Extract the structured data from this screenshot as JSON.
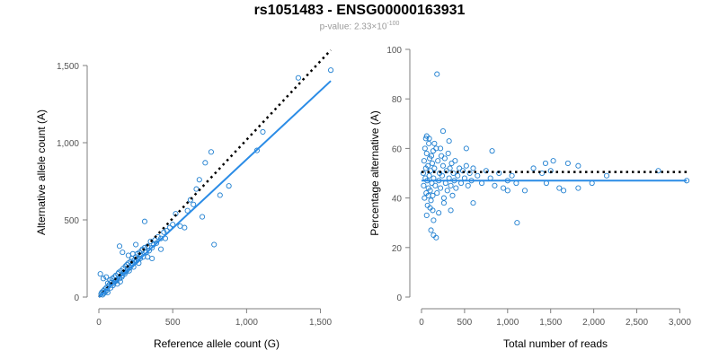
{
  "title": "rs1051483 - ENSG00000163931",
  "subtitle": {
    "prefix": "p-value: ",
    "mantissa": "2.33×10",
    "exponent": "-100"
  },
  "colors": {
    "points": "#1f7fd0",
    "fit": "#2b8ce6",
    "axis": "#7f7f7f",
    "reference": "#000000"
  },
  "chart_data": [
    {
      "type": "scatter",
      "xlabel": "Reference allele count (G)",
      "ylabel": "Alternative allele count (A)",
      "xlim": [
        0,
        1600
      ],
      "ylim": [
        0,
        1500
      ],
      "xticks": [
        0,
        500,
        1000,
        1500
      ],
      "xtick_labels": [
        "0",
        "500",
        "1,000",
        "1,500"
      ],
      "yticks": [
        0,
        500,
        1000,
        1500
      ],
      "ytick_labels": [
        "0",
        "500",
        "1,000",
        "1,500"
      ],
      "reference_line": {
        "x": [
          0,
          1570
        ],
        "y": [
          0,
          1600
        ],
        "style": "dotted"
      },
      "fit_line": {
        "x": [
          0,
          1570
        ],
        "y": [
          0,
          1400
        ]
      },
      "points": [
        [
          15,
          20
        ],
        [
          20,
          30
        ],
        [
          25,
          15
        ],
        [
          30,
          40
        ],
        [
          35,
          25
        ],
        [
          40,
          50
        ],
        [
          45,
          35
        ],
        [
          50,
          60
        ],
        [
          55,
          45
        ],
        [
          60,
          30
        ],
        [
          10,
          150
        ],
        [
          30,
          120
        ],
        [
          50,
          130
        ],
        [
          60,
          90
        ],
        [
          65,
          70
        ],
        [
          70,
          80
        ],
        [
          75,
          110
        ],
        [
          80,
          60
        ],
        [
          85,
          95
        ],
        [
          90,
          120
        ],
        [
          95,
          75
        ],
        [
          100,
          90
        ],
        [
          105,
          130
        ],
        [
          110,
          100
        ],
        [
          115,
          140
        ],
        [
          120,
          110
        ],
        [
          125,
          85
        ],
        [
          130,
          150
        ],
        [
          135,
          160
        ],
        [
          140,
          120
        ],
        [
          145,
          100
        ],
        [
          150,
          170
        ],
        [
          155,
          130
        ],
        [
          160,
          140
        ],
        [
          165,
          185
        ],
        [
          170,
          160
        ],
        [
          175,
          150
        ],
        [
          180,
          200
        ],
        [
          185,
          165
        ],
        [
          190,
          210
        ],
        [
          195,
          180
        ],
        [
          200,
          220
        ],
        [
          205,
          170
        ],
        [
          210,
          190
        ],
        [
          215,
          230
        ],
        [
          220,
          205
        ],
        [
          225,
          250
        ],
        [
          230,
          215
        ],
        [
          235,
          195
        ],
        [
          240,
          240
        ],
        [
          245,
          225
        ],
        [
          250,
          260
        ],
        [
          255,
          235
        ],
        [
          260,
          280
        ],
        [
          265,
          245
        ],
        [
          270,
          220
        ],
        [
          275,
          290
        ],
        [
          280,
          250
        ],
        [
          285,
          270
        ],
        [
          290,
          300
        ],
        [
          295,
          310
        ],
        [
          300,
          260
        ],
        [
          310,
          320
        ],
        [
          320,
          290
        ],
        [
          330,
          330
        ],
        [
          340,
          300
        ],
        [
          350,
          360
        ],
        [
          360,
          320
        ],
        [
          370,
          340
        ],
        [
          380,
          370
        ],
        [
          390,
          350
        ],
        [
          400,
          390
        ],
        [
          420,
          380
        ],
        [
          440,
          420
        ],
        [
          460,
          430
        ],
        [
          480,
          450
        ],
        [
          500,
          470
        ],
        [
          520,
          540
        ],
        [
          550,
          460
        ],
        [
          580,
          450
        ],
        [
          600,
          560
        ],
        [
          620,
          630
        ],
        [
          640,
          600
        ],
        [
          660,
          700
        ],
        [
          680,
          760
        ],
        [
          700,
          520
        ],
        [
          720,
          870
        ],
        [
          760,
          940
        ],
        [
          780,
          340
        ],
        [
          820,
          660
        ],
        [
          880,
          720
        ],
        [
          140,
          330
        ],
        [
          160,
          290
        ],
        [
          200,
          270
        ],
        [
          230,
          280
        ],
        [
          250,
          340
        ],
        [
          310,
          490
        ],
        [
          330,
          260
        ],
        [
          360,
          250
        ],
        [
          1070,
          950
        ],
        [
          1110,
          1070
        ],
        [
          1350,
          1420
        ],
        [
          1570,
          1470
        ],
        [
          420,
          310
        ],
        [
          450,
          380
        ]
      ]
    },
    {
      "type": "scatter",
      "xlabel": "Total number of reads",
      "ylabel": "Percentage alternative (A)",
      "xlim": [
        0,
        3100
      ],
      "ylim": [
        0,
        100
      ],
      "xticks": [
        0,
        500,
        1000,
        1500,
        2000,
        2500,
        3000
      ],
      "xtick_labels": [
        "0",
        "500",
        "1,000",
        "1,500",
        "2,000",
        "2,500",
        "3,000"
      ],
      "yticks": [
        0,
        20,
        40,
        60,
        80,
        100
      ],
      "ytick_labels": [
        "0",
        "20",
        "40",
        "60",
        "80",
        "100"
      ],
      "reference_line": {
        "x": [
          0,
          3080
        ],
        "y": [
          50.5,
          50.5
        ],
        "style": "dotted"
      },
      "fit_line": {
        "x": [
          0,
          3080
        ],
        "y": [
          47,
          47
        ]
      },
      "points": [
        [
          20,
          50
        ],
        [
          25,
          45
        ],
        [
          30,
          55
        ],
        [
          35,
          40
        ],
        [
          40,
          60
        ],
        [
          45,
          48
        ],
        [
          50,
          52
        ],
        [
          55,
          42
        ],
        [
          60,
          58
        ],
        [
          65,
          47
        ],
        [
          70,
          37
        ],
        [
          75,
          53
        ],
        [
          80,
          44
        ],
        [
          85,
          62
        ],
        [
          90,
          49
        ],
        [
          95,
          56
        ],
        [
          100,
          43
        ],
        [
          105,
          51
        ],
        [
          110,
          39
        ],
        [
          115,
          57
        ],
        [
          120,
          46
        ],
        [
          125,
          54
        ],
        [
          130,
          41
        ],
        [
          135,
          59
        ],
        [
          140,
          48
        ],
        [
          150,
          52
        ],
        [
          160,
          45
        ],
        [
          170,
          60
        ],
        [
          180,
          42
        ],
        [
          190,
          55
        ],
        [
          200,
          47
        ],
        [
          210,
          50
        ],
        [
          220,
          44
        ],
        [
          230,
          57
        ],
        [
          240,
          49
        ],
        [
          250,
          53
        ],
        [
          260,
          40
        ],
        [
          270,
          56
        ],
        [
          280,
          46
        ],
        [
          290,
          51
        ],
        [
          300,
          43
        ],
        [
          310,
          58
        ],
        [
          320,
          48
        ],
        [
          330,
          52
        ],
        [
          340,
          45
        ],
        [
          350,
          54
        ],
        [
          360,
          41
        ],
        [
          370,
          50
        ],
        [
          380,
          47
        ],
        [
          390,
          55
        ],
        [
          400,
          44
        ],
        [
          420,
          49
        ],
        [
          440,
          52
        ],
        [
          460,
          46
        ],
        [
          480,
          51
        ],
        [
          500,
          48
        ],
        [
          520,
          53
        ],
        [
          540,
          45
        ],
        [
          560,
          50
        ],
        [
          580,
          47
        ],
        [
          600,
          52
        ],
        [
          650,
          49
        ],
        [
          700,
          46
        ],
        [
          750,
          51
        ],
        [
          800,
          48
        ],
        [
          850,
          45
        ],
        [
          900,
          50
        ],
        [
          950,
          44
        ],
        [
          1000,
          47
        ],
        [
          1050,
          49
        ],
        [
          1100,
          46
        ],
        [
          1200,
          43
        ],
        [
          1300,
          52
        ],
        [
          1400,
          50
        ],
        [
          1450,
          46
        ],
        [
          1500,
          51
        ],
        [
          1600,
          44
        ],
        [
          1650,
          43
        ],
        [
          1700,
          54
        ],
        [
          1820,
          44
        ],
        [
          1980,
          46
        ],
        [
          2150,
          49
        ],
        [
          2750,
          51
        ],
        [
          3080,
          47
        ],
        [
          180,
          90
        ],
        [
          170,
          24
        ],
        [
          110,
          27
        ],
        [
          140,
          25
        ],
        [
          1110,
          30
        ],
        [
          250,
          67
        ],
        [
          60,
          65
        ],
        [
          90,
          64
        ],
        [
          320,
          63
        ],
        [
          520,
          60
        ],
        [
          820,
          59
        ],
        [
          1440,
          54
        ],
        [
          1530,
          55
        ],
        [
          1820,
          53
        ],
        [
          100,
          36
        ],
        [
          60,
          33
        ],
        [
          140,
          31
        ],
        [
          260,
          38
        ],
        [
          340,
          35
        ],
        [
          600,
          38
        ],
        [
          1000,
          43
        ],
        [
          50,
          64
        ],
        [
          150,
          62
        ],
        [
          220,
          60
        ],
        [
          80,
          41
        ],
        [
          130,
          35
        ],
        [
          200,
          34
        ]
      ]
    }
  ]
}
